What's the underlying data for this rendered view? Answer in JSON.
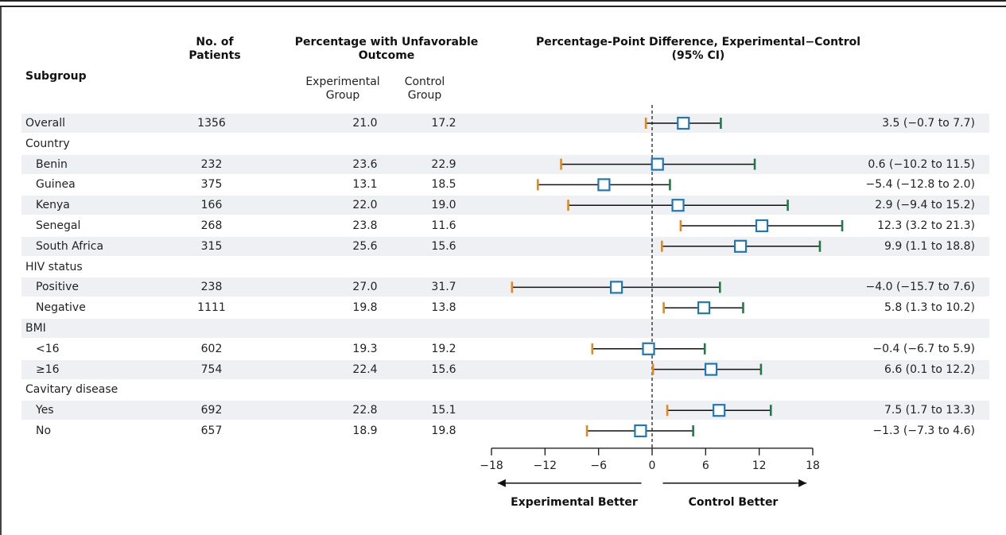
{
  "headers": {
    "subgroup": "Subgroup",
    "patients": "No. of Patients",
    "percentage": "Percentage with Unfavorable Outcome",
    "experimental": "Experimental Group",
    "control": "Control Group",
    "difference": "Percentage-Point Difference, Experimental−Control",
    "difference_ci": "(95% CI)"
  },
  "chart_data": {
    "type": "forest",
    "title": "Percentage-Point Difference, Experimental−Control (95% CI)",
    "xlim": [
      -18,
      18
    ],
    "xticks": [
      -18,
      -12,
      -6,
      0,
      6,
      12,
      18
    ],
    "reference_line": 0,
    "direction_labels": {
      "left": "Experimental Better",
      "right": "Control Better"
    },
    "colors": {
      "point": "#1f78b4",
      "lower_cap": "#e08a1e",
      "upper_cap": "#1f7a45",
      "line": "#111111",
      "shade": "#eef0f3"
    },
    "rows": [
      {
        "label": "Overall",
        "type": "data",
        "n": "1356",
        "exp": "21.0",
        "ctl": "17.2",
        "est": 3.5,
        "lo": -0.7,
        "hi": 7.7,
        "ci_text": "3.5 (−0.7 to 7.7)"
      },
      {
        "label": "Country",
        "type": "group"
      },
      {
        "label": "Benin",
        "type": "data",
        "indent": true,
        "n": "232",
        "exp": "23.6",
        "ctl": "22.9",
        "est": 0.6,
        "lo": -10.2,
        "hi": 11.5,
        "ci_text": "0.6 (−10.2 to 11.5)"
      },
      {
        "label": "Guinea",
        "type": "data",
        "indent": true,
        "n": "375",
        "exp": "13.1",
        "ctl": "18.5",
        "est": -5.4,
        "lo": -12.8,
        "hi": 2.0,
        "ci_text": "−5.4 (−12.8 to 2.0)"
      },
      {
        "label": "Kenya",
        "type": "data",
        "indent": true,
        "n": "166",
        "exp": "22.0",
        "ctl": "19.0",
        "est": 2.9,
        "lo": -9.4,
        "hi": 15.2,
        "ci_text": "2.9 (−9.4 to 15.2)"
      },
      {
        "label": "Senegal",
        "type": "data",
        "indent": true,
        "n": "268",
        "exp": "23.8",
        "ctl": "11.6",
        "est": 12.3,
        "lo": 3.2,
        "hi": 21.3,
        "ci_text": "12.3 (3.2 to 21.3)"
      },
      {
        "label": "South Africa",
        "type": "data",
        "indent": true,
        "n": "315",
        "exp": "25.6",
        "ctl": "15.6",
        "est": 9.9,
        "lo": 1.1,
        "hi": 18.8,
        "ci_text": "9.9 (1.1 to 18.8)"
      },
      {
        "label": "HIV status",
        "type": "group"
      },
      {
        "label": "Positive",
        "type": "data",
        "indent": true,
        "n": "238",
        "exp": "27.0",
        "ctl": "31.7",
        "est": -4.0,
        "lo": -15.7,
        "hi": 7.6,
        "ci_text": "−4.0 (−15.7 to 7.6)"
      },
      {
        "label": "Negative",
        "type": "data",
        "indent": true,
        "n": "1111",
        "exp": "19.8",
        "ctl": "13.8",
        "est": 5.8,
        "lo": 1.3,
        "hi": 10.2,
        "ci_text": "5.8 (1.3 to 10.2)"
      },
      {
        "label": "BMI",
        "type": "group"
      },
      {
        "label": "<16",
        "type": "data",
        "indent": true,
        "n": "602",
        "exp": "19.3",
        "ctl": "19.2",
        "est": -0.4,
        "lo": -6.7,
        "hi": 5.9,
        "ci_text": "−0.4 (−6.7 to 5.9)"
      },
      {
        "label": "≥16",
        "type": "data",
        "indent": true,
        "n": "754",
        "exp": "22.4",
        "ctl": "15.6",
        "est": 6.6,
        "lo": 0.1,
        "hi": 12.2,
        "ci_text": "6.6 (0.1 to 12.2)"
      },
      {
        "label": "Cavitary disease",
        "type": "group"
      },
      {
        "label": "Yes",
        "type": "data",
        "indent": true,
        "n": "692",
        "exp": "22.8",
        "ctl": "15.1",
        "est": 7.5,
        "lo": 1.7,
        "hi": 13.3,
        "ci_text": "7.5 (1.7 to 13.3)"
      },
      {
        "label": "No",
        "type": "data",
        "indent": true,
        "n": "657",
        "exp": "18.9",
        "ctl": "19.8",
        "est": -1.3,
        "lo": -7.3,
        "hi": 4.6,
        "ci_text": "−1.3 (−7.3 to 4.6)"
      }
    ]
  }
}
